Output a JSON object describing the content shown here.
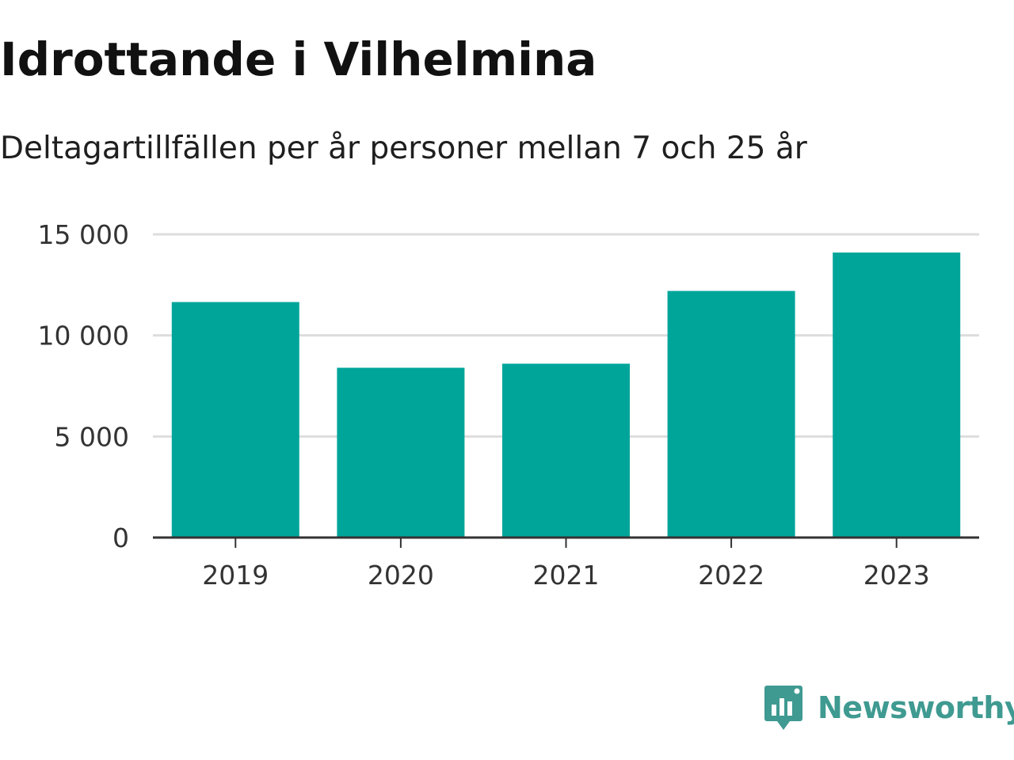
{
  "header": {
    "title": "Idrottande i Vilhelmina",
    "subtitle": "Deltagartillfällen per år personer mellan 7 och 25 år"
  },
  "colors": {
    "bar": "#00a59a",
    "grid": "#dddddd",
    "axis": "#333333",
    "brand": "#3f9a91"
  },
  "chart_data": {
    "type": "bar",
    "categories": [
      "2019",
      "2020",
      "2021",
      "2022",
      "2023"
    ],
    "values": [
      11650,
      8400,
      8600,
      12200,
      14100
    ],
    "ylim": [
      0,
      15000
    ],
    "yticks": [
      0,
      5000,
      10000,
      15000
    ],
    "ytick_labels": [
      "0",
      "5 000",
      "10 000",
      "15 000"
    ],
    "grid": true,
    "xlabel": "",
    "ylabel": ""
  },
  "brand": {
    "name": "Newsworthy",
    "logo_icon": "newsworthy-chart-bubble-icon"
  }
}
